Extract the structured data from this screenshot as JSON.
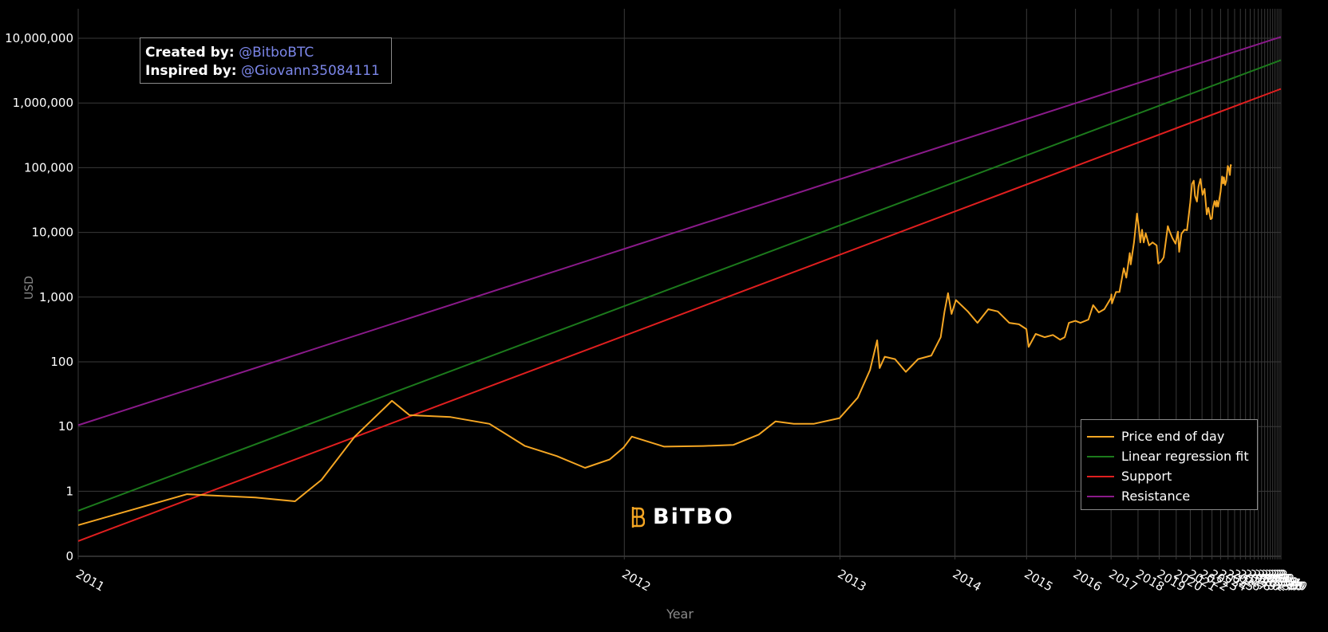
{
  "credits": {
    "created_label": "Created by:",
    "created_handle": "@BitboBTC",
    "inspired_label": "Inspired by:",
    "inspired_handle": "@Giovann35084111"
  },
  "logo": {
    "text": "BiTBO"
  },
  "colors": {
    "background": "#000000",
    "grid": "#3a3a3a",
    "grid_major": "#5c5c5c",
    "price": "#f5a623",
    "regression": "#1c7a1c",
    "support": "#e01f1f",
    "resistance": "#8a1a8a",
    "link": "#7b86e8"
  },
  "chart_data": {
    "type": "line",
    "xlabel": "Year",
    "ylabel": "USD",
    "y_scale": "log",
    "x_range": [
      "2011-01-01",
      "2040-01-01"
    ],
    "y_ticks": [
      "0",
      "1",
      "10",
      "100",
      "1,000",
      "10,000",
      "100,000",
      "1,000,000",
      "10,000,000"
    ],
    "x_ticks": [
      "2011",
      "2012",
      "2013",
      "2014",
      "2015",
      "2016",
      "2017",
      "2018",
      "2019",
      "2020",
      "2021",
      "2022",
      "2023",
      "2024",
      "2025",
      "2026",
      "2027",
      "2028",
      "2029",
      "2030",
      "2031",
      "2032",
      "2033",
      "2034",
      "2035",
      "2036",
      "2037",
      "2038",
      "2039",
      "2040"
    ],
    "grid": true,
    "legend_position": "bottom-right",
    "series": [
      {
        "name": "Price end of day",
        "color": "#f5a623",
        "points": [
          [
            "2011-01-01",
            0.3
          ],
          [
            "2011-02-15",
            0.9
          ],
          [
            "2011-03-20",
            0.8
          ],
          [
            "2011-04-10",
            0.7
          ],
          [
            "2011-04-25",
            1.5
          ],
          [
            "2011-05-15",
            7
          ],
          [
            "2011-06-08",
            25
          ],
          [
            "2011-06-20",
            15
          ],
          [
            "2011-07-20",
            14
          ],
          [
            "2011-08-20",
            11
          ],
          [
            "2011-09-20",
            5
          ],
          [
            "2011-10-20",
            3.5
          ],
          [
            "2011-11-18",
            2.3
          ],
          [
            "2011-12-15",
            3.1
          ],
          [
            "2011-12-31",
            4.7
          ],
          [
            "2012-01-10",
            7
          ],
          [
            "2012-02-20",
            4.9
          ],
          [
            "2012-04-15",
            5
          ],
          [
            "2012-06-01",
            5.2
          ],
          [
            "2012-07-15",
            7.5
          ],
          [
            "2012-08-15",
            12
          ],
          [
            "2012-09-20",
            11
          ],
          [
            "2012-11-01",
            11
          ],
          [
            "2012-12-31",
            13.5
          ],
          [
            "2013-02-15",
            28
          ],
          [
            "2013-03-20",
            75
          ],
          [
            "2013-04-09",
            215
          ],
          [
            "2013-04-16",
            80
          ],
          [
            "2013-05-01",
            120
          ],
          [
            "2013-06-01",
            110
          ],
          [
            "2013-07-05",
            70
          ],
          [
            "2013-08-15",
            110
          ],
          [
            "2013-10-01",
            125
          ],
          [
            "2013-11-05",
            240
          ],
          [
            "2013-11-20",
            600
          ],
          [
            "2013-12-04",
            1150
          ],
          [
            "2013-12-18",
            550
          ],
          [
            "2014-01-05",
            900
          ],
          [
            "2014-02-25",
            600
          ],
          [
            "2014-04-10",
            400
          ],
          [
            "2014-06-01",
            650
          ],
          [
            "2014-07-20",
            600
          ],
          [
            "2014-09-20",
            400
          ],
          [
            "2014-11-15",
            380
          ],
          [
            "2014-12-31",
            320
          ],
          [
            "2015-01-14",
            170
          ],
          [
            "2015-03-01",
            270
          ],
          [
            "2015-05-01",
            240
          ],
          [
            "2015-07-01",
            260
          ],
          [
            "2015-08-25",
            220
          ],
          [
            "2015-10-01",
            240
          ],
          [
            "2015-11-05",
            400
          ],
          [
            "2015-12-31",
            430
          ],
          [
            "2016-02-15",
            400
          ],
          [
            "2016-05-01",
            450
          ],
          [
            "2016-06-17",
            750
          ],
          [
            "2016-08-15",
            580
          ],
          [
            "2016-10-15",
            650
          ],
          [
            "2016-12-31",
            970
          ],
          [
            "2017-01-05",
            1100
          ],
          [
            "2017-01-12",
            800
          ],
          [
            "2017-03-01",
            1200
          ],
          [
            "2017-04-15",
            1200
          ],
          [
            "2017-06-10",
            2800
          ],
          [
            "2017-07-15",
            2000
          ],
          [
            "2017-09-01",
            4800
          ],
          [
            "2017-09-15",
            3200
          ],
          [
            "2017-11-01",
            7000
          ],
          [
            "2017-12-17",
            19500
          ],
          [
            "2018-01-15",
            11500
          ],
          [
            "2018-02-06",
            7000
          ],
          [
            "2018-03-05",
            11000
          ],
          [
            "2018-04-01",
            7000
          ],
          [
            "2018-05-05",
            9700
          ],
          [
            "2018-07-01",
            6300
          ],
          [
            "2018-09-01",
            7000
          ],
          [
            "2018-11-14",
            6300
          ],
          [
            "2018-12-15",
            3300
          ],
          [
            "2019-02-01",
            3500
          ],
          [
            "2019-04-01",
            4100
          ],
          [
            "2019-06-26",
            12500
          ],
          [
            "2019-08-01",
            10500
          ],
          [
            "2019-10-01",
            8300
          ],
          [
            "2019-12-17",
            6700
          ],
          [
            "2020-02-13",
            10300
          ],
          [
            "2020-03-12",
            5000
          ],
          [
            "2020-05-10",
            9500
          ],
          [
            "2020-07-27",
            11000
          ],
          [
            "2020-10-01",
            10800
          ],
          [
            "2020-12-31",
            29000
          ],
          [
            "2021-02-20",
            56000
          ],
          [
            "2021-04-14",
            63000
          ],
          [
            "2021-05-20",
            37000
          ],
          [
            "2021-07-20",
            30000
          ],
          [
            "2021-09-05",
            51000
          ],
          [
            "2021-11-10",
            67000
          ],
          [
            "2022-01-20",
            38000
          ],
          [
            "2022-03-28",
            47000
          ],
          [
            "2022-06-18",
            19000
          ],
          [
            "2022-08-15",
            24000
          ],
          [
            "2022-11-09",
            16000
          ],
          [
            "2022-12-31",
            16500
          ],
          [
            "2023-01-31",
            23000
          ],
          [
            "2023-04-14",
            30500
          ],
          [
            "2023-06-15",
            25000
          ],
          [
            "2023-07-15",
            31000
          ],
          [
            "2023-09-11",
            25000
          ],
          [
            "2023-12-31",
            42500
          ],
          [
            "2024-03-13",
            73000
          ],
          [
            "2024-05-01",
            57000
          ],
          [
            "2024-06-05",
            71000
          ],
          [
            "2024-08-05",
            54000
          ],
          [
            "2024-10-01",
            63000
          ],
          [
            "2024-12-17",
            106000
          ],
          [
            "2025-02-01",
            100000
          ],
          [
            "2025-04-08",
            77000
          ],
          [
            "2025-05-22",
            110000
          ],
          [
            "2025-07-01",
            107000
          ]
        ]
      },
      {
        "name": "Linear regression fit",
        "color": "#1c7a1c",
        "points": [
          [
            "2011-01-01",
            0.5
          ],
          [
            "2040-01-01",
            4600000
          ]
        ]
      },
      {
        "name": "Support",
        "color": "#e01f1f",
        "points": [
          [
            "2011-01-01",
            0.17
          ],
          [
            "2040-01-01",
            1650000
          ]
        ]
      },
      {
        "name": "Resistance",
        "color": "#8a1a8a",
        "points": [
          [
            "2011-01-01",
            10.5
          ],
          [
            "2040-01-01",
            10500000
          ]
        ]
      }
    ]
  }
}
